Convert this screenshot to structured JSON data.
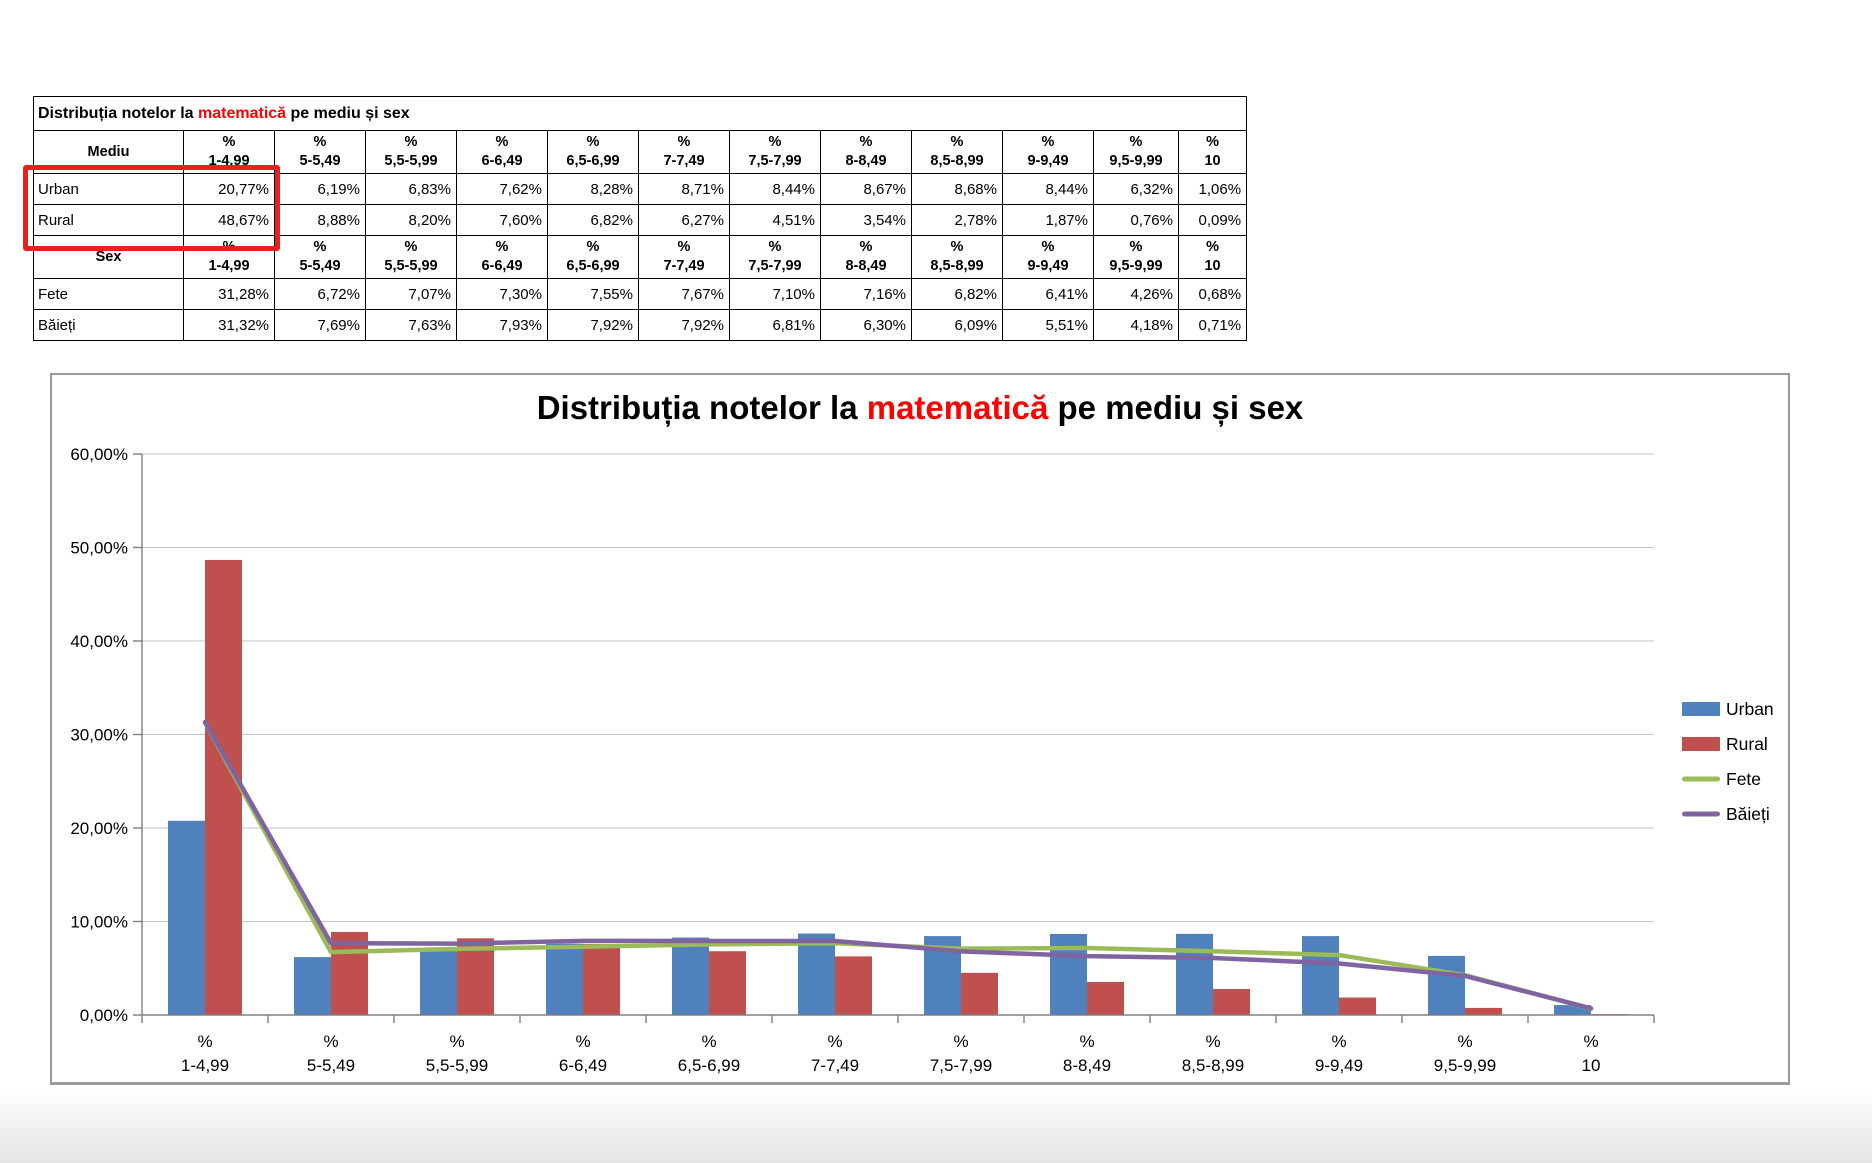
{
  "table": {
    "title": {
      "pre": "Distribuția notelor la ",
      "highlight": "matematică",
      "post": " pe mediu și sex"
    },
    "title_highlight_color": "#ff0000",
    "percent_symbol": "%",
    "bins": [
      "1-4,99",
      "5-5,49",
      "5,5-5,99",
      "6-6,49",
      "6,5-6,99",
      "7-7,49",
      "7,5-7,99",
      "8-8,49",
      "8,5-8,99",
      "9-9,49",
      "9,5-9,99",
      "10"
    ],
    "sections": [
      {
        "header": "Mediu",
        "rows": [
          {
            "label": "Urban",
            "values": [
              "20,77%",
              "6,19%",
              "6,83%",
              "7,62%",
              "8,28%",
              "8,71%",
              "8,44%",
              "8,67%",
              "8,68%",
              "8,44%",
              "6,32%",
              "1,06%"
            ]
          },
          {
            "label": "Rural",
            "values": [
              "48,67%",
              "8,88%",
              "8,20%",
              "7,60%",
              "6,82%",
              "6,27%",
              "4,51%",
              "3,54%",
              "2,78%",
              "1,87%",
              "0,76%",
              "0,09%"
            ]
          }
        ]
      },
      {
        "header": "Sex",
        "rows": [
          {
            "label": "Fete",
            "values": [
              "31,28%",
              "6,72%",
              "7,07%",
              "7,30%",
              "7,55%",
              "7,67%",
              "7,10%",
              "7,16%",
              "6,82%",
              "6,41%",
              "4,26%",
              "0,68%"
            ]
          },
          {
            "label": "Băieți",
            "values": [
              "31,32%",
              "7,69%",
              "7,63%",
              "7,93%",
              "7,92%",
              "7,92%",
              "6,81%",
              "6,30%",
              "6,09%",
              "5,51%",
              "4,18%",
              "0,71%"
            ]
          }
        ]
      }
    ],
    "highlight_box_color": "#e8201e"
  },
  "chart_data": {
    "type": "bar+line",
    "title": {
      "pre": "Distribuția notelor la ",
      "highlight": "matematică",
      "post": " pe mediu și sex"
    },
    "title_highlight_color": "#ff0000",
    "category_prefix": "%",
    "categories": [
      "1-4,99",
      "5-5,49",
      "5,5-5,99",
      "6-6,49",
      "6,5-6,99",
      "7-7,49",
      "7,5-7,99",
      "8-8,49",
      "8,5-8,99",
      "9-9,49",
      "9,5-9,99",
      "10"
    ],
    "series": [
      {
        "name": "Urban",
        "type": "bar",
        "color": "#4F81BD",
        "values": [
          20.77,
          6.19,
          6.83,
          7.62,
          8.28,
          8.71,
          8.44,
          8.67,
          8.68,
          8.44,
          6.32,
          1.06
        ]
      },
      {
        "name": "Rural",
        "type": "bar",
        "color": "#C0504D",
        "values": [
          48.67,
          8.88,
          8.2,
          7.6,
          6.82,
          6.27,
          4.51,
          3.54,
          2.78,
          1.87,
          0.76,
          0.09
        ]
      },
      {
        "name": "Fete",
        "type": "line",
        "color": "#9BBB59",
        "values": [
          31.28,
          6.72,
          7.07,
          7.3,
          7.55,
          7.67,
          7.1,
          7.16,
          6.82,
          6.41,
          4.26,
          0.68
        ]
      },
      {
        "name": "Băieți",
        "type": "line",
        "color": "#8064A2",
        "values": [
          31.32,
          7.69,
          7.63,
          7.93,
          7.92,
          7.92,
          6.81,
          6.3,
          6.09,
          5.51,
          4.18,
          0.71
        ]
      }
    ],
    "ylim": [
      0,
      60
    ],
    "ytick_step": 10,
    "ytick_labels": [
      "0,00%",
      "10,00%",
      "20,00%",
      "30,00%",
      "40,00%",
      "50,00%",
      "60,00%"
    ],
    "grid": true,
    "legend_position": "right",
    "axis_color": "#808080",
    "grid_color": "#c3c3c3"
  }
}
